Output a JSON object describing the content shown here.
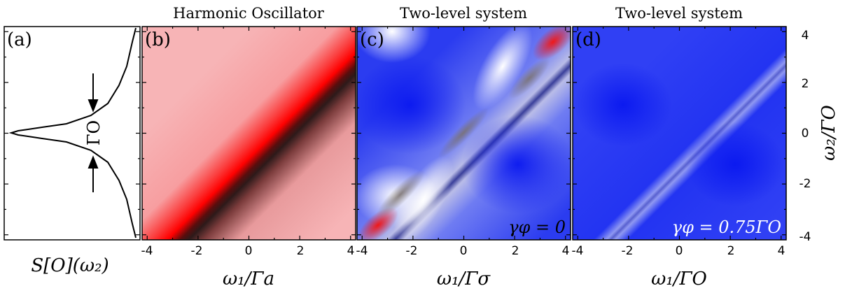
{
  "figure": {
    "panels": [
      {
        "letter": "(a)",
        "xlabel": "S[O](ω₂)",
        "linewidth_label": "ΓO"
      },
      {
        "letter": "(b)",
        "title": "Harmonic Oscillator",
        "xlabel": "ω₁/Γa",
        "x_ticks": [
          "-4",
          "-2",
          "0",
          "2",
          "4"
        ]
      },
      {
        "letter": "(c)",
        "title": "Two-level system",
        "xlabel": "ω₁/Γσ",
        "x_ticks": [
          "-4",
          "-2",
          "0",
          "2",
          "4"
        ],
        "annotation": "γφ = 0"
      },
      {
        "letter": "(d)",
        "title": "Two-level system",
        "xlabel": "ω₁/ΓO",
        "x_ticks": [
          "-4",
          "-2",
          "0",
          "2",
          "4"
        ],
        "annotation": "γφ = 0.75ΓO"
      }
    ],
    "y_axis": {
      "label": "ω₂/ΓO",
      "ticks": [
        "4",
        "2",
        "0",
        "-2",
        "-4"
      ]
    },
    "colors": {
      "red": "#ff0000",
      "red_background": "#f7b3b5",
      "blue": "#0a1cf0",
      "dark": "#2a1a1a"
    }
  },
  "chart_data": [
    {
      "type": "line",
      "title": "",
      "xlabel": "S[O](ω₂)",
      "ylabel": "ω₂/ΓO",
      "description_of_curve": "Lorentzian centered at ω₂ = 0",
      "ylim": [
        -4.2,
        4.2
      ]
    },
    {
      "type": "heatmap",
      "title": "Harmonic Oscillator",
      "xlabel": "ω₁/Γa",
      "ylabel": "ω₂/ΓO",
      "xlim": [
        -4.2,
        4.2
      ],
      "ylim": [
        -4.2,
        4.2
      ],
      "x_ticks": [
        -4,
        -2,
        0,
        2,
        4
      ]
    },
    {
      "type": "heatmap",
      "title": "Two-level system",
      "xlabel": "ω₁/Γσ",
      "ylabel": "ω₂/ΓO",
      "xlim": [
        -4.2,
        4.2
      ],
      "ylim": [
        -4.2,
        4.2
      ],
      "x_ticks": [
        -4,
        -2,
        0,
        2,
        4
      ],
      "annotation": "γφ = 0"
    },
    {
      "type": "heatmap",
      "title": "Two-level system",
      "xlabel": "ω₁/ΓO",
      "ylabel": "ω₂/ΓO",
      "xlim": [
        -4.2,
        4.2
      ],
      "ylim": [
        -4.2,
        4.2
      ],
      "x_ticks": [
        -4,
        -2,
        0,
        2,
        4
      ],
      "annotation": "γφ = 0.75ΓO"
    }
  ]
}
